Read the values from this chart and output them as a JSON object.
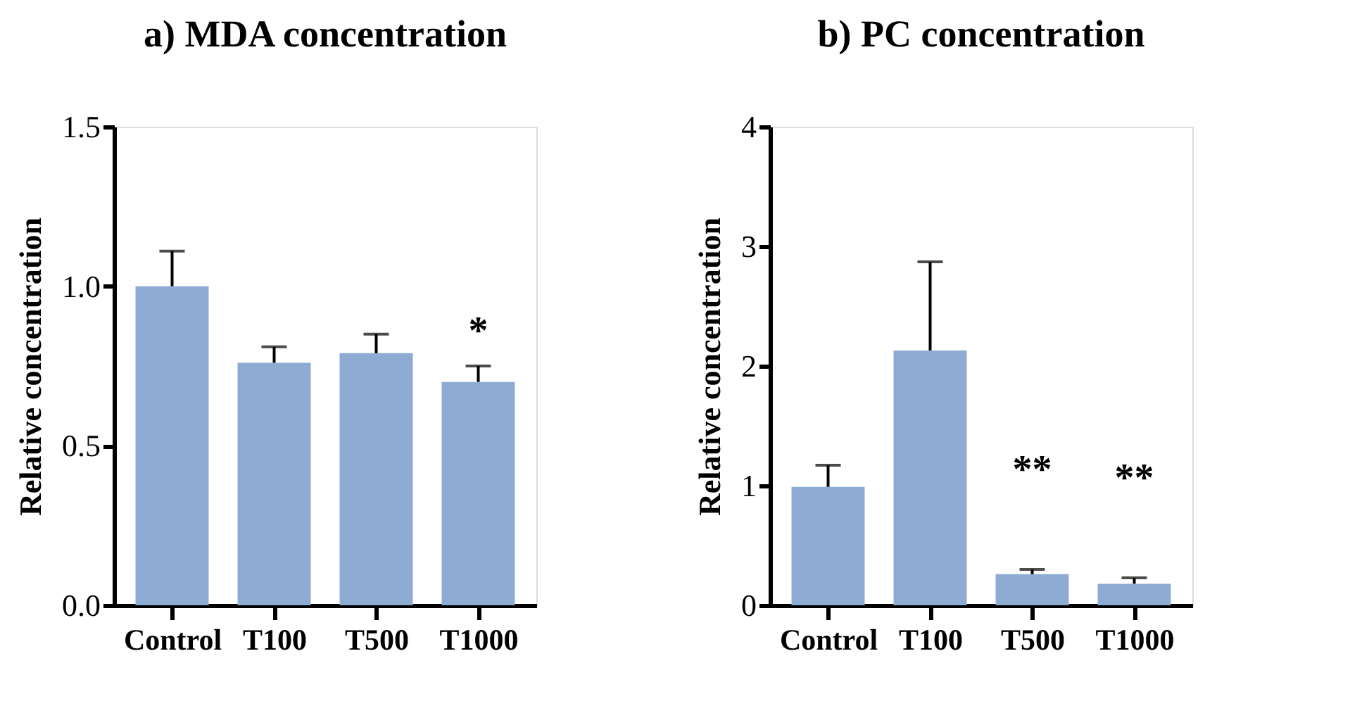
{
  "chart_data": [
    {
      "type": "bar",
      "title": "a)    MDA concentration",
      "ylabel": "Relative concentration",
      "categories": [
        "Control",
        "T100",
        "T500",
        "T1000"
      ],
      "values": [
        1.0,
        0.76,
        0.79,
        0.7
      ],
      "errors": [
        0.11,
        0.05,
        0.06,
        0.05
      ],
      "color": "#8eabd3",
      "ylim": [
        0,
        1.5
      ],
      "yticks": [
        {
          "value": 0,
          "label": "0.0"
        },
        0.5,
        {
          "value": 1,
          "label": "1.0"
        },
        1.5
      ],
      "grid": false,
      "annotations": [
        {
          "text": "*",
          "x": "T1000",
          "y": 0.75
        }
      ]
    },
    {
      "type": "bar",
      "title": "b)    PC concentration",
      "ylabel": "Relative concentration",
      "categories": [
        "Control",
        "T100",
        "T500",
        "T1000"
      ],
      "values": [
        0.99,
        2.13,
        0.26,
        0.18
      ],
      "errors": [
        0.18,
        0.74,
        0.04,
        0.05
      ],
      "color": "#8eabd3",
      "ylim": [
        0,
        4
      ],
      "yticks": [
        0,
        1,
        2,
        3,
        4
      ],
      "grid": false,
      "annotations": [
        {
          "text": "**",
          "x": "T500",
          "y": 0.3
        },
        {
          "text": "**",
          "x": "T1000",
          "y": 0.23
        }
      ]
    }
  ]
}
